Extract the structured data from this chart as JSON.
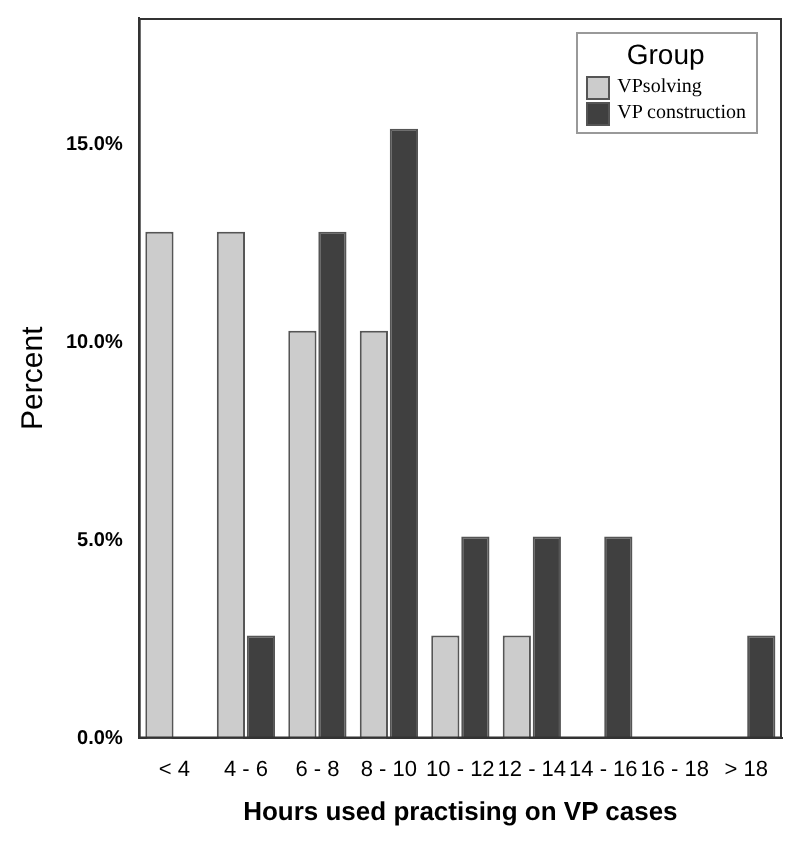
{
  "chart_data": {
    "type": "bar",
    "xlabel": "Hours used practising on VP cases",
    "ylabel": "Percent",
    "legend_title": "Group",
    "legend": "top right",
    "grid": false,
    "categories": [
      "< 4",
      "4 - 6",
      "6 - 8",
      "8 - 10",
      "10 - 12",
      "12 - 14",
      "14 - 16",
      "16 - 18",
      "> 18"
    ],
    "ylim": [
      0,
      18.2
    ],
    "yticks": [
      {
        "value": 0,
        "label": "0.0%"
      },
      {
        "value": 5,
        "label": "5.0%"
      },
      {
        "value": 10,
        "label": "10.0%"
      },
      {
        "value": 15,
        "label": "15.0%"
      }
    ],
    "series": [
      {
        "name": "VPsolving",
        "color": "#cccccc",
        "values": [
          12.8,
          12.8,
          10.3,
          10.3,
          2.6,
          2.6,
          0,
          0,
          0
        ]
      },
      {
        "name": "VP construction",
        "color": "#404040",
        "values": [
          0,
          2.6,
          12.8,
          15.4,
          5.1,
          5.1,
          5.1,
          0,
          2.6
        ]
      }
    ]
  }
}
